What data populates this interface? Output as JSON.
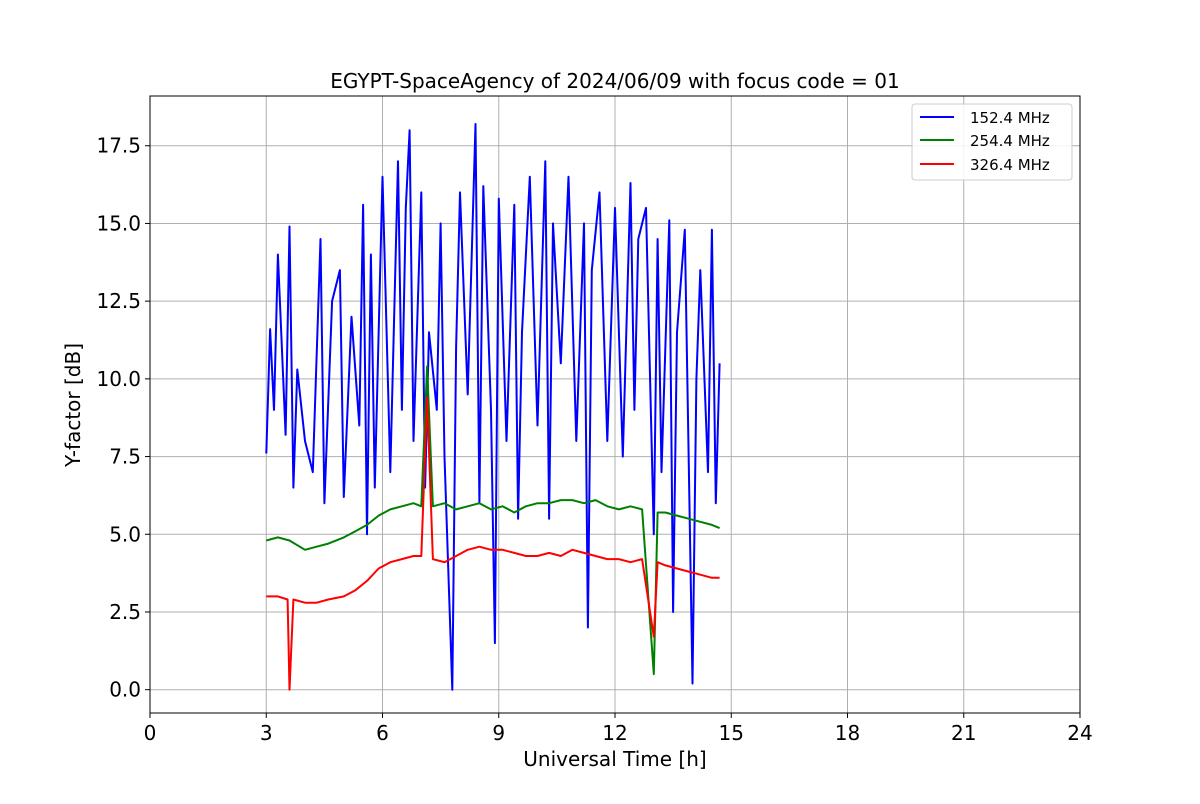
{
  "chart_data": {
    "type": "line",
    "title": "EGYPT-SpaceAgency of 2024/06/09 with focus code = 01",
    "xlabel": "Universal Time [h]",
    "ylabel": "Y-factor [dB]",
    "xlim": [
      0,
      24
    ],
    "ylim": [
      -0.75,
      19.1
    ],
    "xticks": [
      0,
      3,
      6,
      9,
      12,
      15,
      18,
      21,
      24
    ],
    "xtick_labels": [
      "0",
      "3",
      "6",
      "9",
      "12",
      "15",
      "18",
      "21",
      "24"
    ],
    "yticks": [
      0.0,
      2.5,
      5.0,
      7.5,
      10.0,
      12.5,
      15.0,
      17.5
    ],
    "ytick_labels": [
      "0.0",
      "2.5",
      "5.0",
      "7.5",
      "10.0",
      "12.5",
      "15.0",
      "17.5"
    ],
    "grid": true,
    "legend_position": "top-right",
    "series": [
      {
        "name": "152.4 MHz",
        "color": "#0000ff",
        "x": [
          3.0,
          3.1,
          3.2,
          3.3,
          3.5,
          3.6,
          3.7,
          3.8,
          4.0,
          4.2,
          4.4,
          4.5,
          4.7,
          4.9,
          5.0,
          5.2,
          5.4,
          5.5,
          5.6,
          5.7,
          5.8,
          6.0,
          6.2,
          6.4,
          6.5,
          6.6,
          6.7,
          6.8,
          7.0,
          7.1,
          7.2,
          7.4,
          7.5,
          7.6,
          7.8,
          7.9,
          8.0,
          8.2,
          8.4,
          8.5,
          8.6,
          8.8,
          8.9,
          9.0,
          9.2,
          9.4,
          9.5,
          9.6,
          9.8,
          10.0,
          10.2,
          10.3,
          10.4,
          10.6,
          10.8,
          11.0,
          11.2,
          11.3,
          11.4,
          11.6,
          11.8,
          12.0,
          12.2,
          12.4,
          12.5,
          12.6,
          12.8,
          13.0,
          13.1,
          13.2,
          13.4,
          13.5,
          13.6,
          13.8,
          14.0,
          14.1,
          14.2,
          14.4,
          14.5,
          14.6,
          14.7
        ],
        "y": [
          7.6,
          11.6,
          9.0,
          14.0,
          8.2,
          14.9,
          6.5,
          10.3,
          8.0,
          7.0,
          14.5,
          6.0,
          12.5,
          13.5,
          6.2,
          12.0,
          8.5,
          15.6,
          5.0,
          14.0,
          6.5,
          16.5,
          7.0,
          17.0,
          9.0,
          15.5,
          18.0,
          8.0,
          16.0,
          6.5,
          11.5,
          9.0,
          15.0,
          7.5,
          0.0,
          11.0,
          16.0,
          9.5,
          18.2,
          6.0,
          16.2,
          9.0,
          1.5,
          15.8,
          8.0,
          15.6,
          5.5,
          11.5,
          16.5,
          8.5,
          17.0,
          5.5,
          15.0,
          10.5,
          16.5,
          8.0,
          15.0,
          2.0,
          13.5,
          16.0,
          8.0,
          15.5,
          7.5,
          16.3,
          9.0,
          14.5,
          15.5,
          5.0,
          14.5,
          7.0,
          15.1,
          2.5,
          11.5,
          14.8,
          0.2,
          10.0,
          13.5,
          7.0,
          14.8,
          6.0,
          10.5
        ]
      },
      {
        "name": "254.4 MHz",
        "color": "#008000",
        "x": [
          3.0,
          3.3,
          3.6,
          4.0,
          4.3,
          4.6,
          5.0,
          5.3,
          5.6,
          5.9,
          6.2,
          6.5,
          6.8,
          7.0,
          7.15,
          7.3,
          7.6,
          7.9,
          8.2,
          8.5,
          8.8,
          9.1,
          9.4,
          9.7,
          10.0,
          10.3,
          10.6,
          10.9,
          11.2,
          11.5,
          11.8,
          12.1,
          12.4,
          12.7,
          13.0,
          13.1,
          13.3,
          13.6,
          13.9,
          14.2,
          14.5,
          14.7
        ],
        "y": [
          4.8,
          4.9,
          4.8,
          4.5,
          4.6,
          4.7,
          4.9,
          5.1,
          5.3,
          5.6,
          5.8,
          5.9,
          6.0,
          5.9,
          10.4,
          5.9,
          6.0,
          5.8,
          5.9,
          6.0,
          5.8,
          5.9,
          5.7,
          5.9,
          6.0,
          6.0,
          6.1,
          6.1,
          6.0,
          6.1,
          5.9,
          5.8,
          5.9,
          5.8,
          0.5,
          5.7,
          5.7,
          5.6,
          5.5,
          5.4,
          5.3,
          5.2
        ]
      },
      {
        "name": "326.4 MHz",
        "color": "#ff0000",
        "x": [
          3.0,
          3.3,
          3.55,
          3.6,
          3.7,
          4.0,
          4.3,
          4.6,
          5.0,
          5.3,
          5.6,
          5.9,
          6.2,
          6.5,
          6.8,
          7.0,
          7.15,
          7.3,
          7.6,
          7.9,
          8.2,
          8.5,
          8.8,
          9.1,
          9.4,
          9.7,
          10.0,
          10.3,
          10.6,
          10.9,
          11.2,
          11.5,
          11.8,
          12.1,
          12.4,
          12.7,
          13.0,
          13.1,
          13.3,
          13.6,
          13.9,
          14.2,
          14.5,
          14.7
        ],
        "y": [
          3.0,
          3.0,
          2.9,
          0.0,
          2.9,
          2.8,
          2.8,
          2.9,
          3.0,
          3.2,
          3.5,
          3.9,
          4.1,
          4.2,
          4.3,
          4.3,
          9.4,
          4.2,
          4.1,
          4.3,
          4.5,
          4.6,
          4.5,
          4.5,
          4.4,
          4.3,
          4.3,
          4.4,
          4.3,
          4.5,
          4.4,
          4.3,
          4.2,
          4.2,
          4.1,
          4.2,
          1.7,
          4.1,
          4.0,
          3.9,
          3.8,
          3.7,
          3.6,
          3.6
        ]
      }
    ]
  }
}
